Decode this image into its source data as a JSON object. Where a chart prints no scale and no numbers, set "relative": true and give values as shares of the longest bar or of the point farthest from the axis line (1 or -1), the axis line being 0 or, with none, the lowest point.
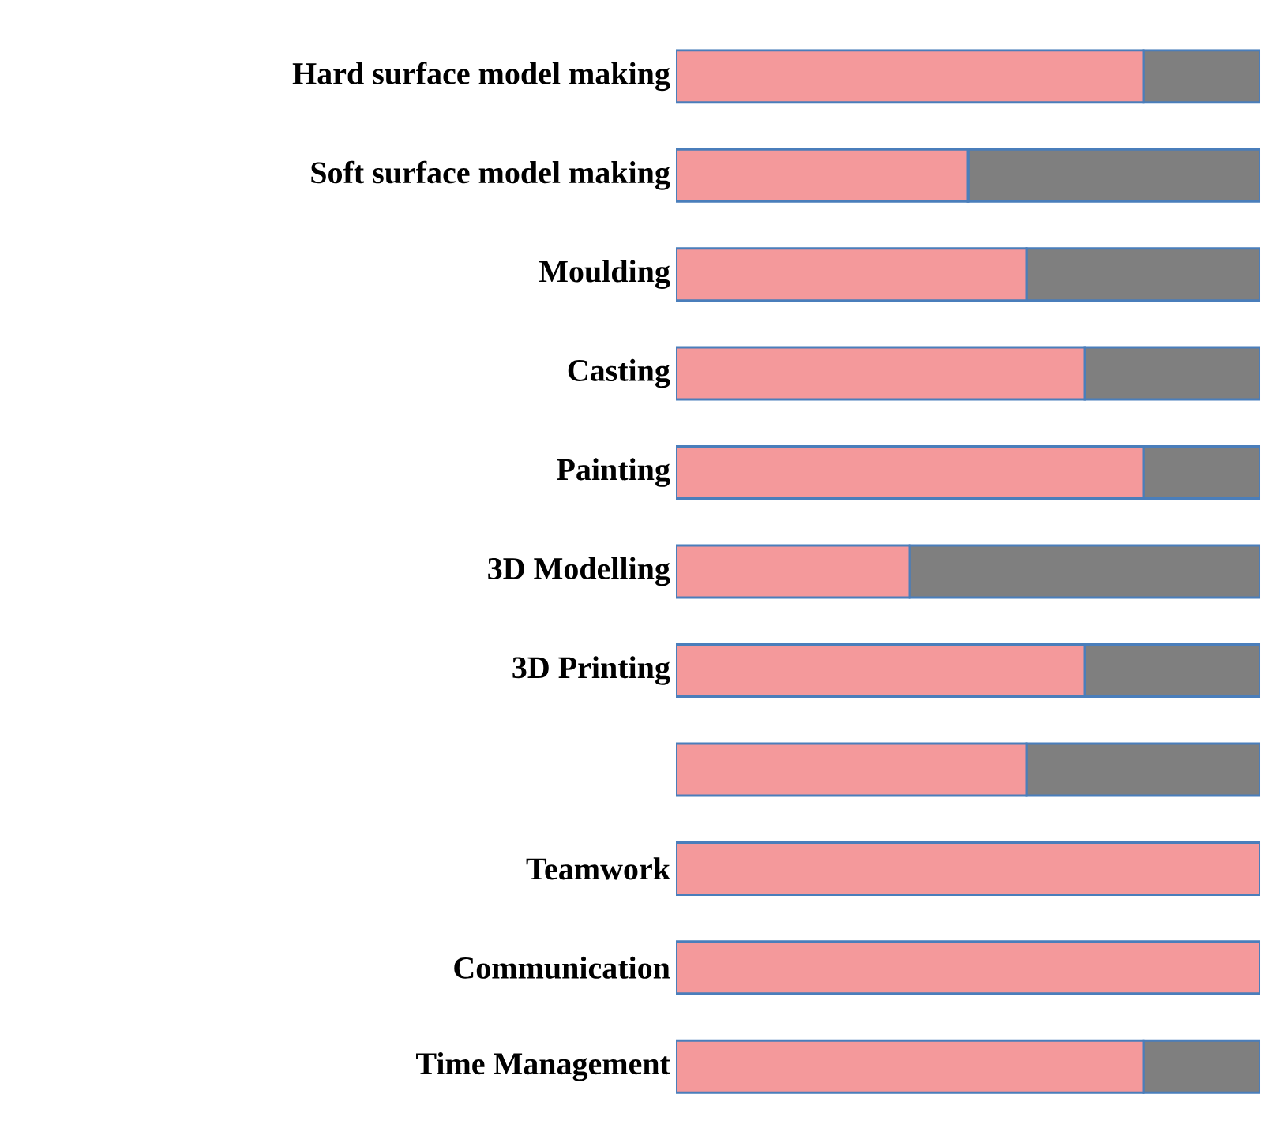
{
  "chart_data": {
    "type": "bar",
    "orientation": "horizontal",
    "stacked": true,
    "relative": true,
    "categories": [
      "Hard surface model making",
      "Soft surface model making",
      "Moulding",
      "Casting",
      "Painting",
      "3D Modelling",
      "3D Printing",
      null,
      "Teamwork",
      "Communication",
      "Time Management"
    ],
    "series": [
      {
        "color": "#f4999b",
        "values": [
          0.8,
          0.5,
          0.6,
          0.7,
          0.8,
          0.4,
          0.7,
          0.6,
          1,
          1,
          0.8
        ]
      },
      {
        "color": "#7f7f7f",
        "values": [
          0.2,
          0.5,
          0.4,
          0.3,
          0.2,
          0.6,
          0.3,
          0.4,
          0,
          0,
          0.2
        ]
      }
    ]
  }
}
